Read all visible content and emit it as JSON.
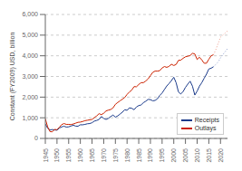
{
  "chart_data": {
    "type": "line",
    "ylabel": "Constant (FY2009) USD, billion",
    "x": [
      1945,
      1946,
      1947,
      1948,
      1949,
      1950,
      1951,
      1952,
      1953,
      1954,
      1955,
      1956,
      1957,
      1958,
      1959,
      1960,
      1961,
      1962,
      1963,
      1964,
      1965,
      1966,
      1967,
      1968,
      1969,
      1970,
      1971,
      1972,
      1973,
      1974,
      1975,
      1976,
      1977,
      1978,
      1979,
      1980,
      1981,
      1982,
      1983,
      1984,
      1985,
      1986,
      1987,
      1988,
      1989,
      1990,
      1991,
      1992,
      1993,
      1994,
      1995,
      1996,
      1997,
      1998,
      1999,
      2000,
      2001,
      2002,
      2003,
      2004,
      2005,
      2006,
      2007,
      2008,
      2009,
      2010,
      2011,
      2012,
      2013,
      2014,
      2015,
      2016,
      2017,
      2018,
      2019,
      2020,
      2021,
      2022,
      2023
    ],
    "series": [
      {
        "name": "Receipts",
        "color": "#1a3a8a",
        "line_style": "solid",
        "values": [
          700,
          490,
          410,
          430,
          410,
          400,
          500,
          560,
          590,
          550,
          560,
          600,
          640,
          595,
          590,
          660,
          660,
          680,
          710,
          720,
          760,
          840,
          870,
          920,
          1060,
          970,
          920,
          970,
          1060,
          1130,
          1030,
          1090,
          1180,
          1270,
          1390,
          1360,
          1480,
          1460,
          1390,
          1520,
          1590,
          1620,
          1730,
          1800,
          1890,
          1880,
          1820,
          1840,
          1920,
          2080,
          2200,
          2370,
          2540,
          2660,
          2800,
          2960,
          2700,
          2250,
          2150,
          2270,
          2470,
          2630,
          2770,
          2530,
          2100,
          2290,
          2530,
          2700,
          2910,
          3110,
          3360,
          3400,
          3470,
          null,
          null,
          null,
          null,
          null,
          null
        ]
      },
      {
        "name": "Outlays",
        "color": "#cc2200",
        "line_style": "solid",
        "values": [
          950,
          560,
          330,
          320,
          440,
          420,
          540,
          670,
          720,
          680,
          680,
          670,
          700,
          740,
          780,
          790,
          820,
          860,
          880,
          900,
          920,
          1010,
          1090,
          1200,
          1150,
          1220,
          1330,
          1370,
          1400,
          1480,
          1650,
          1740,
          1820,
          1900,
          1980,
          2130,
          2250,
          2340,
          2510,
          2500,
          2610,
          2700,
          2700,
          2780,
          2880,
          3040,
          3200,
          3260,
          3260,
          3280,
          3410,
          3480,
          3440,
          3490,
          3590,
          3530,
          3580,
          3780,
          3790,
          3880,
          3950,
          3980,
          4010,
          4120,
          4090,
          3820,
          3930,
          3800,
          3640,
          3640,
          3830,
          4000,
          4050,
          null,
          null,
          null,
          null,
          null,
          null
        ]
      },
      {
        "color": "#8899cc",
        "line_style": "dotted",
        "values": [
          null,
          null,
          null,
          null,
          null,
          null,
          null,
          null,
          null,
          null,
          null,
          null,
          null,
          null,
          null,
          null,
          null,
          null,
          null,
          null,
          null,
          null,
          null,
          null,
          null,
          null,
          null,
          null,
          null,
          null,
          null,
          null,
          null,
          null,
          null,
          null,
          null,
          null,
          null,
          null,
          null,
          null,
          null,
          null,
          null,
          null,
          null,
          null,
          null,
          null,
          null,
          null,
          null,
          null,
          null,
          null,
          null,
          null,
          null,
          null,
          null,
          null,
          null,
          null,
          null,
          null,
          null,
          null,
          null,
          null,
          null,
          null,
          3470,
          3580,
          3700,
          3900,
          4050,
          4200,
          4350
        ]
      },
      {
        "color": "#ee9988",
        "line_style": "dotted",
        "values": [
          null,
          null,
          null,
          null,
          null,
          null,
          null,
          null,
          null,
          null,
          null,
          null,
          null,
          null,
          null,
          null,
          null,
          null,
          null,
          null,
          null,
          null,
          null,
          null,
          null,
          null,
          null,
          null,
          null,
          null,
          null,
          null,
          null,
          null,
          null,
          null,
          null,
          null,
          null,
          null,
          null,
          null,
          null,
          null,
          null,
          null,
          null,
          null,
          null,
          null,
          null,
          null,
          null,
          null,
          null,
          null,
          null,
          null,
          null,
          null,
          null,
          null,
          null,
          null,
          null,
          null,
          null,
          null,
          null,
          null,
          null,
          null,
          4050,
          4300,
          4600,
          4900,
          5000,
          5100,
          5200
        ]
      }
    ],
    "xlim": [
      1945,
      2023
    ],
    "xticks": [
      1945,
      1950,
      1955,
      1960,
      1965,
      1970,
      1975,
      1980,
      1985,
      1990,
      1995,
      2000,
      2005,
      2010,
      2015,
      2020
    ],
    "ylim": [
      0,
      6000
    ],
    "yticks": [
      0,
      {
        "value": 1000,
        "label": "1,000"
      },
      {
        "value": 2000,
        "label": "2,000"
      },
      {
        "value": 3000,
        "label": "3,000"
      },
      {
        "value": 4000,
        "label": "4,000"
      },
      {
        "value": 5000,
        "label": "5,000"
      },
      {
        "value": 6000,
        "label": "6,000"
      }
    ],
    "grid": true,
    "legend": "lower right"
  }
}
